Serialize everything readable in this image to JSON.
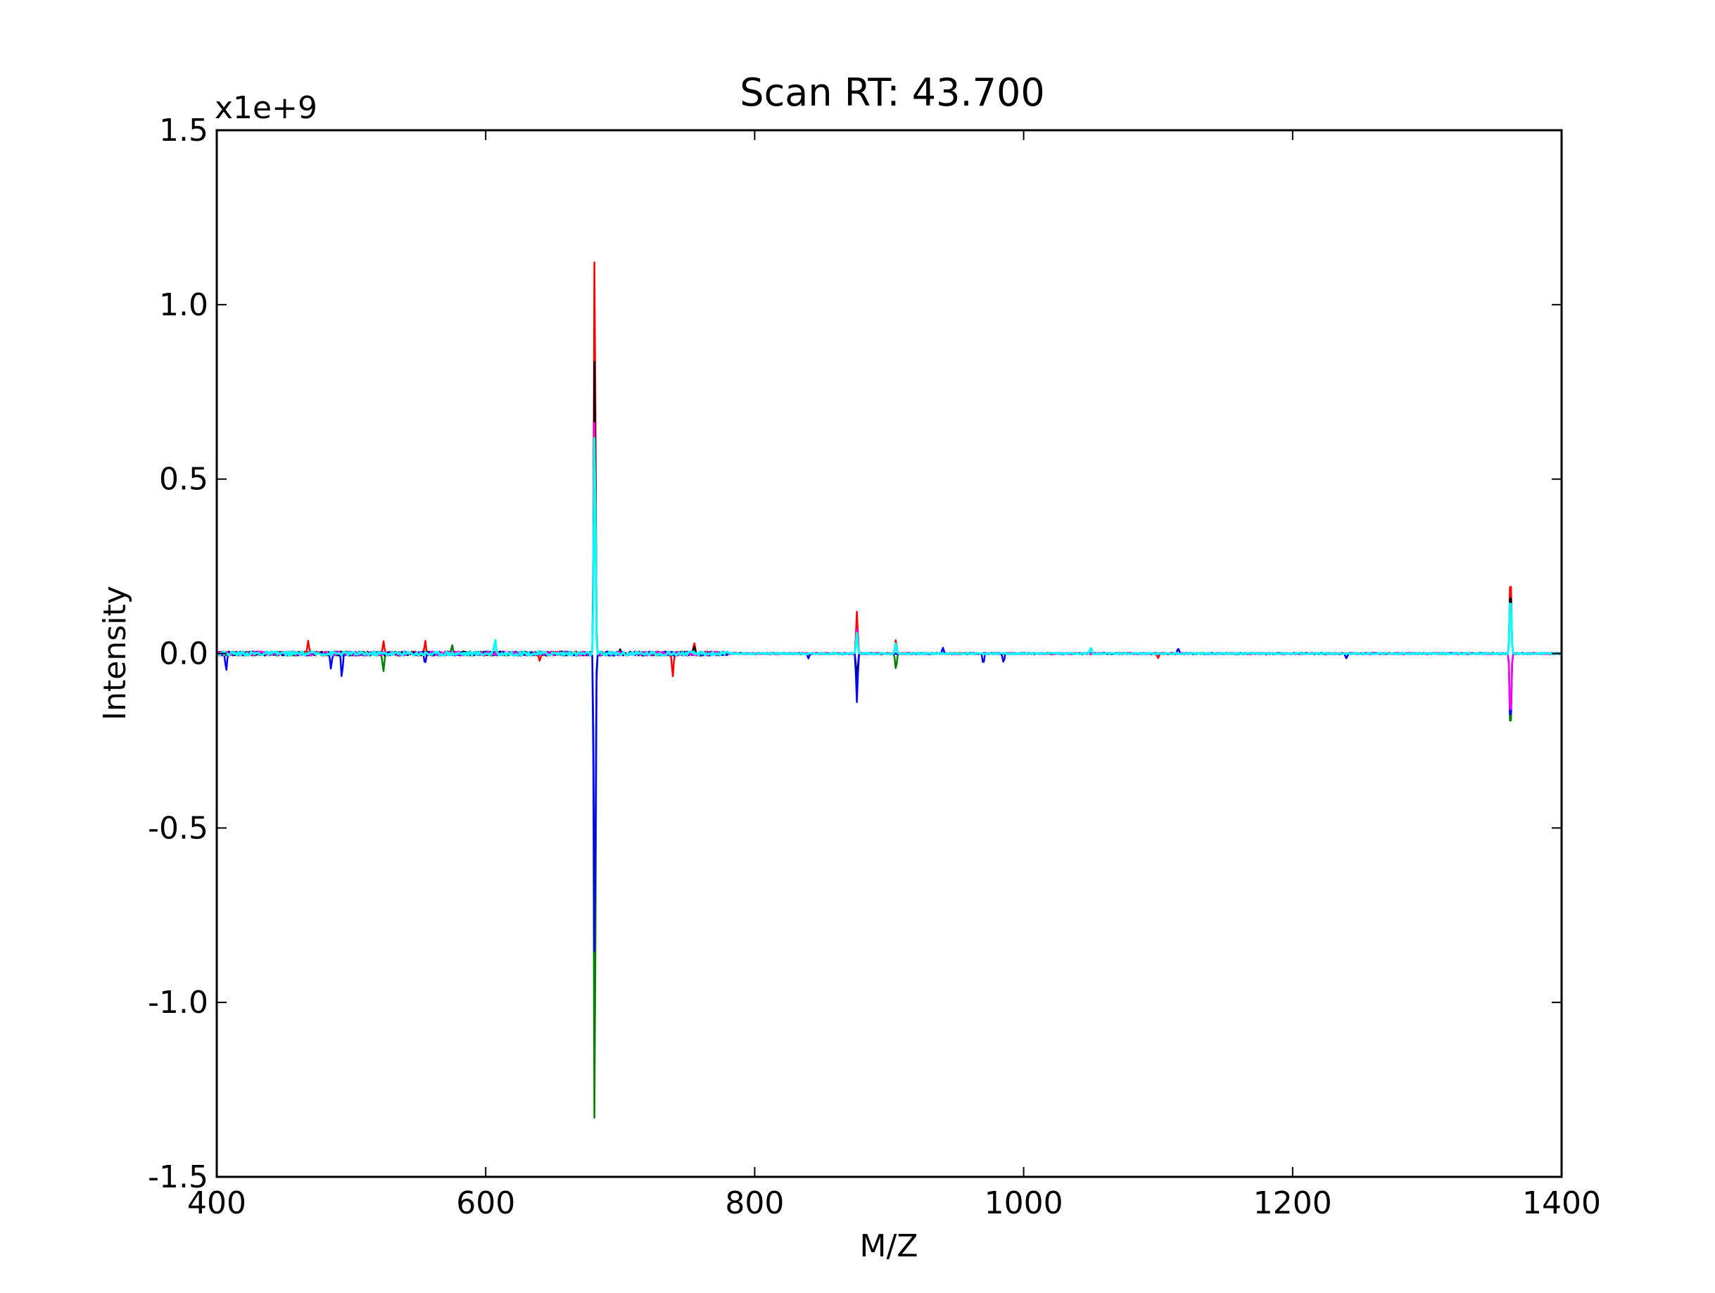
{
  "chart_data": {
    "type": "line",
    "title": "Scan RT: 43.700",
    "xlabel": "M/Z",
    "ylabel": "Intensity",
    "y_multiplier_label": "x1e+9",
    "xlim": [
      400,
      1400
    ],
    "ylim": [
      -1.5,
      1.5
    ],
    "x_ticks": [
      400,
      600,
      800,
      1000,
      1200,
      1400
    ],
    "x_tick_labels": [
      "400",
      "600",
      "800",
      "1000",
      "1200",
      "1400"
    ],
    "y_ticks": [
      -1.5,
      -1.0,
      -0.5,
      0.0,
      0.5,
      1.0,
      1.5
    ],
    "y_tick_labels": [
      "-1.5",
      "-1.0",
      "-0.5",
      "0.0",
      "0.5",
      "1.0",
      "1.5"
    ],
    "grid": false,
    "series_colors": [
      "#ff0000",
      "#008000",
      "#000000",
      "#0000ff",
      "#ff00ff",
      "#00ffff"
    ],
    "peaks": [
      {
        "x": 681,
        "values": [
          1.19,
          -1.41,
          0.88,
          -0.9,
          0.7,
          0.65
        ]
      },
      {
        "x": 876,
        "values": [
          0.12,
          -0.1,
          -0.08,
          -0.14,
          0.07,
          0.06
        ]
      },
      {
        "x": 1362,
        "values": [
          0.24,
          -0.24,
          0.2,
          -0.22,
          -0.2,
          0.18
        ]
      },
      {
        "x": 905,
        "values": [
          0.04,
          -0.045,
          0.03,
          0.0,
          0.02,
          0.03
        ]
      },
      {
        "x": 739,
        "values": [
          -0.07,
          0.0,
          0.0,
          0.0,
          0.0,
          0.0
        ]
      },
      {
        "x": 493,
        "values": [
          0.0,
          0.0,
          0.0,
          -0.065,
          0.0,
          0.0
        ]
      },
      {
        "x": 524,
        "values": [
          0.03,
          -0.055,
          0.0,
          0.0,
          0.0,
          0.0
        ]
      },
      {
        "x": 468,
        "values": [
          0.035,
          0.0,
          0.0,
          0.0,
          0.0,
          0.0
        ]
      },
      {
        "x": 407,
        "values": [
          0.0,
          0.0,
          0.0,
          -0.045,
          0.0,
          0.0
        ]
      },
      {
        "x": 485,
        "values": [
          0.0,
          0.0,
          0.0,
          -0.04,
          0.0,
          0.0
        ]
      },
      {
        "x": 607,
        "values": [
          0.0,
          0.0,
          0.0,
          0.0,
          0.0,
          0.04
        ]
      },
      {
        "x": 555,
        "values": [
          0.035,
          0.0,
          0.0,
          -0.03,
          0.0,
          0.0
        ]
      },
      {
        "x": 755,
        "values": [
          0.025,
          0.0,
          0.02,
          0.0,
          0.0,
          0.0
        ]
      },
      {
        "x": 970,
        "values": [
          0.0,
          0.0,
          0.0,
          -0.03,
          0.0,
          0.0
        ]
      },
      {
        "x": 1050,
        "values": [
          0.0,
          0.0,
          0.0,
          0.0,
          0.0,
          0.02
        ]
      },
      {
        "x": 985,
        "values": [
          0.0,
          0.0,
          0.0,
          -0.025,
          0.0,
          0.0
        ]
      },
      {
        "x": 940,
        "values": [
          0.0,
          0.0,
          0.0,
          0.015,
          0.0,
          0.0
        ]
      },
      {
        "x": 1100,
        "values": [
          -0.015,
          0.0,
          0.0,
          0.0,
          0.0,
          0.0
        ]
      },
      {
        "x": 1115,
        "values": [
          0.0,
          0.0,
          0.0,
          0.015,
          0.0,
          0.0
        ]
      },
      {
        "x": 1240,
        "values": [
          0.0,
          0.0,
          0.0,
          -0.015,
          0.0,
          0.0
        ]
      },
      {
        "x": 840,
        "values": [
          0.0,
          0.0,
          0.0,
          -0.015,
          0.0,
          0.0
        ]
      },
      {
        "x": 700,
        "values": [
          0.0,
          0.0,
          0.015,
          0.0,
          0.0,
          0.0
        ]
      },
      {
        "x": 640,
        "values": [
          -0.02,
          0.0,
          0.0,
          0.0,
          0.0,
          0.0
        ]
      },
      {
        "x": 575,
        "values": [
          0.0,
          0.02,
          0.0,
          0.0,
          0.0,
          0.0
        ]
      }
    ]
  }
}
